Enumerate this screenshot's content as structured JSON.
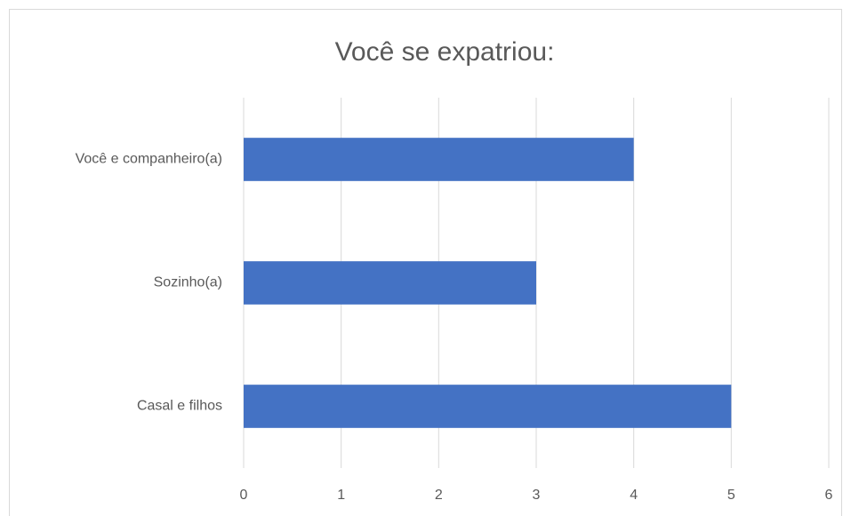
{
  "chart_data": {
    "type": "bar",
    "orientation": "horizontal",
    "title": "Você se expatriou:",
    "categories": [
      "Você e companheiro(a)",
      "Sozinho(a)",
      "Casal e filhos"
    ],
    "values": [
      4,
      3,
      5
    ],
    "color": "#4472c4",
    "xlim": [
      0,
      6
    ],
    "xticks": [
      0,
      1,
      2,
      3,
      4,
      5,
      6
    ],
    "grid": true
  }
}
